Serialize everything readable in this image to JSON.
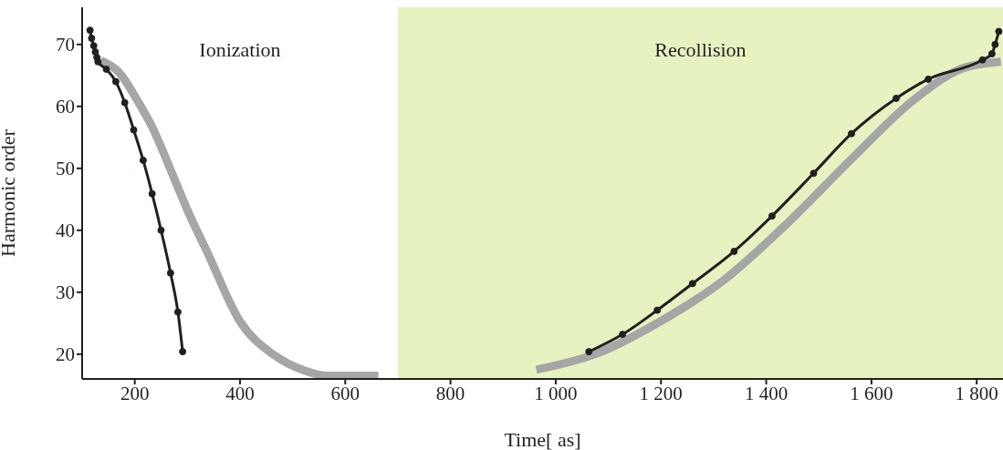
{
  "chart_data": {
    "type": "line",
    "xlabel": "Time[ as]",
    "ylabel": "Harmonic order",
    "xlim": [
      100,
      1850
    ],
    "ylim": [
      16,
      76
    ],
    "xticks": [
      200,
      400,
      600,
      800,
      {
        "value": 1000,
        "label": "1 000"
      },
      {
        "value": 1200,
        "label": "1 200"
      },
      {
        "value": 1400,
        "label": "1 400"
      },
      {
        "value": 1600,
        "label": "1 600"
      },
      {
        "value": 1800,
        "label": "1 800"
      }
    ],
    "yticks": [
      20,
      30,
      40,
      50,
      60,
      70
    ],
    "grid": false,
    "legend": false,
    "bands": [
      {
        "axis": "x",
        "from": 700,
        "to": 1850,
        "color": "#e6f2c0"
      }
    ],
    "annotations": [
      "Ionization",
      "Recollision"
    ],
    "series": [
      {
        "color": "#a6a6a6",
        "marker": "none",
        "x": [
          135,
          170,
          204,
          233,
          268,
          302,
          337,
          400,
          464,
          521,
          568,
          663,
          800,
          963,
          1078,
          1199,
          1320,
          1441,
          1562,
          1684,
          1775,
          1846
        ],
        "values": [
          67.4,
          65.5,
          61.1,
          56.7,
          49.8,
          42.9,
          36.6,
          25.3,
          19.9,
          17.4,
          16.5,
          16.5,
          null,
          17.5,
          20.1,
          25.3,
          32.0,
          41.2,
          51.5,
          61.3,
          66.2,
          67.2
        ]
      },
      {
        "color": "#231f20",
        "marker": "circle",
        "x": [
          115,
          118,
          122,
          125,
          128,
          130,
          146,
          164,
          181,
          198,
          216,
          233,
          250,
          268,
          282,
          291,
          700,
          1063,
          1127,
          1193,
          1260,
          1339,
          1411,
          1490,
          1562,
          1647,
          1708,
          1811,
          1829,
          1835,
          1842
        ],
        "values": [
          72.3,
          71.0,
          69.8,
          68.8,
          67.9,
          67.2,
          66.0,
          64.0,
          60.6,
          56.2,
          51.3,
          45.9,
          40.0,
          33.1,
          26.8,
          20.4,
          null,
          20.4,
          23.2,
          27.1,
          31.4,
          36.6,
          42.3,
          49.2,
          55.6,
          61.3,
          64.4,
          67.5,
          68.5,
          70.0,
          72.1
        ]
      }
    ]
  }
}
